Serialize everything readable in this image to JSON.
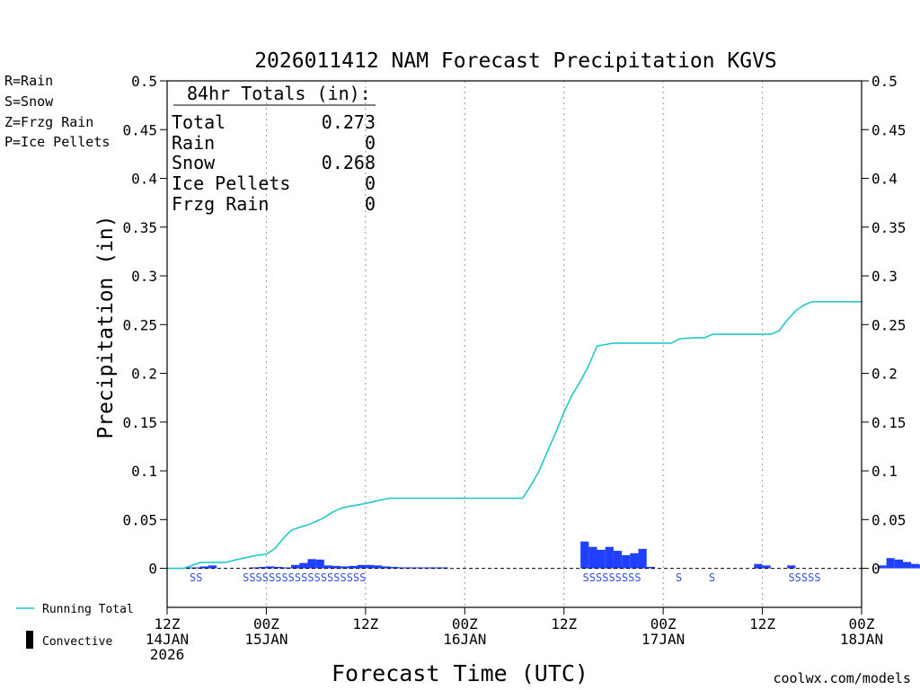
{
  "chart_data": {
    "type": "bar",
    "title": "2026011412 NAM Forecast Precipitation KGVS",
    "ylabel": "Precipitation (in)",
    "xlabel": "Forecast Time (UTC)",
    "ylim": [
      -0.04,
      0.5
    ],
    "xlim": [
      0,
      84
    ],
    "y_ticks": [
      0,
      0.05,
      0.1,
      0.15,
      0.2,
      0.25,
      0.3,
      0.35,
      0.4,
      0.45,
      0.5
    ],
    "y_tick_labels": [
      "0",
      "0.05",
      "0.1",
      "0.15",
      "0.2",
      "0.25",
      "0.3",
      "0.35",
      "0.4",
      "0.45",
      "0.5"
    ],
    "x_ticks": [
      {
        "hour": 0,
        "lines": [
          "12Z",
          "14JAN",
          "2026"
        ]
      },
      {
        "hour": 12,
        "lines": [
          "00Z",
          "15JAN"
        ]
      },
      {
        "hour": 24,
        "lines": [
          "12Z"
        ]
      },
      {
        "hour": 36,
        "lines": [
          "00Z",
          "16JAN"
        ]
      },
      {
        "hour": 48,
        "lines": [
          "12Z"
        ]
      },
      {
        "hour": 60,
        "lines": [
          "00Z",
          "17JAN"
        ]
      },
      {
        "hour": 72,
        "lines": [
          "12Z"
        ]
      },
      {
        "hour": 84,
        "lines": [
          "00Z",
          "18JAN"
        ]
      }
    ],
    "hourly_precip": [
      0,
      0,
      0.001,
      0.001,
      0.002,
      0.003,
      0,
      0,
      0,
      0,
      0.001,
      0.0015,
      0.002,
      0.0015,
      0.001,
      0.0035,
      0.0055,
      0.0095,
      0.009,
      0.003,
      0.0025,
      0.002,
      0.0025,
      0.0035,
      0.0035,
      0.003,
      0.002,
      0.0015,
      0.001,
      0.001,
      0.001,
      0.001,
      0.001,
      0.001,
      0,
      0,
      0,
      0,
      0,
      0,
      0,
      0,
      0,
      0,
      0,
      0,
      0,
      0,
      0,
      0,
      0.0275,
      0.022,
      0.019,
      0.022,
      0.018,
      0.0135,
      0.0155,
      0.02,
      0.0015,
      0,
      0,
      0,
      0,
      0,
      0,
      0,
      0,
      0,
      0,
      0,
      0,
      0.0045,
      0.003,
      0,
      0,
      0.003,
      0,
      0,
      0,
      0,
      0,
      0,
      0,
      0,
      0,
      0,
      0.003,
      0.0105,
      0.009,
      0.0065,
      0.0045,
      0.0035,
      0,
      0,
      0
    ],
    "running_total": [
      [
        0,
        0
      ],
      [
        2,
        0
      ],
      [
        4,
        0.006
      ],
      [
        7,
        0.006
      ],
      [
        9,
        0.01
      ],
      [
        11,
        0.0135
      ],
      [
        12,
        0.0145
      ],
      [
        13,
        0.02
      ],
      [
        14,
        0.03
      ],
      [
        15,
        0.039
      ],
      [
        16,
        0.042
      ],
      [
        17,
        0.0445
      ],
      [
        18,
        0.048
      ],
      [
        19,
        0.052
      ],
      [
        20,
        0.0575
      ],
      [
        21,
        0.0615
      ],
      [
        22,
        0.0635
      ],
      [
        23,
        0.065
      ],
      [
        24,
        0.0665
      ],
      [
        25,
        0.0685
      ],
      [
        26,
        0.0705
      ],
      [
        27,
        0.072
      ],
      [
        28,
        0.072
      ],
      [
        43,
        0.072
      ],
      [
        44,
        0.085
      ],
      [
        45,
        0.1
      ],
      [
        46,
        0.12
      ],
      [
        47,
        0.139
      ],
      [
        48,
        0.16
      ],
      [
        49,
        0.178
      ],
      [
        50,
        0.192
      ],
      [
        51,
        0.208
      ],
      [
        52,
        0.228
      ],
      [
        53,
        0.2295
      ],
      [
        54,
        0.231
      ],
      [
        61,
        0.231
      ],
      [
        62,
        0.2355
      ],
      [
        64,
        0.2365
      ],
      [
        65,
        0.2365
      ],
      [
        66,
        0.24
      ],
      [
        73,
        0.24
      ],
      [
        74,
        0.2435
      ],
      [
        75,
        0.2545
      ],
      [
        76,
        0.264
      ],
      [
        77,
        0.27
      ],
      [
        78,
        0.2735
      ],
      [
        84,
        0.2735
      ]
    ],
    "ptype_markers": [
      {
        "hour": 3.5,
        "text": "SS"
      },
      {
        "hour": 16.6,
        "text": "SSSSSSSSSSSSSSSSSSS"
      },
      {
        "hour": 53.8,
        "text": "SSSSSSSSS"
      },
      {
        "hour": 61.9,
        "text": "S"
      },
      {
        "hour": 65.9,
        "text": "S"
      },
      {
        "hour": 77.1,
        "text": "SSSSS"
      }
    ]
  },
  "colors": {
    "bars": "#2040ff",
    "running_total": "#20c8c8",
    "convective": "#000000",
    "snow_marker": "#3050e0",
    "rain": "#20c020",
    "snow": "#3050e0",
    "frzg_rain": "#f08030",
    "ice_pellets": "#e020a0",
    "credit": "#e02020"
  },
  "ptype_legend": {
    "rain": "R=Rain",
    "snow": "S=Snow",
    "frzg_rain": "Z=Frzg Rain",
    "ice_pellets": "P=Ice Pellets"
  },
  "totals": {
    "header": "84hr Totals (in):",
    "rows": [
      {
        "label": "Total",
        "value": "0.273"
      },
      {
        "label": "Rain",
        "value": "0"
      },
      {
        "label": "Snow",
        "value": "0.268"
      },
      {
        "label": "Ice Pellets",
        "value": "0"
      },
      {
        "label": "Frzg Rain",
        "value": "0"
      }
    ]
  },
  "series_legend": {
    "running_total": "Running Total",
    "convective": "Convective"
  },
  "credit": "coolwx.com/models"
}
